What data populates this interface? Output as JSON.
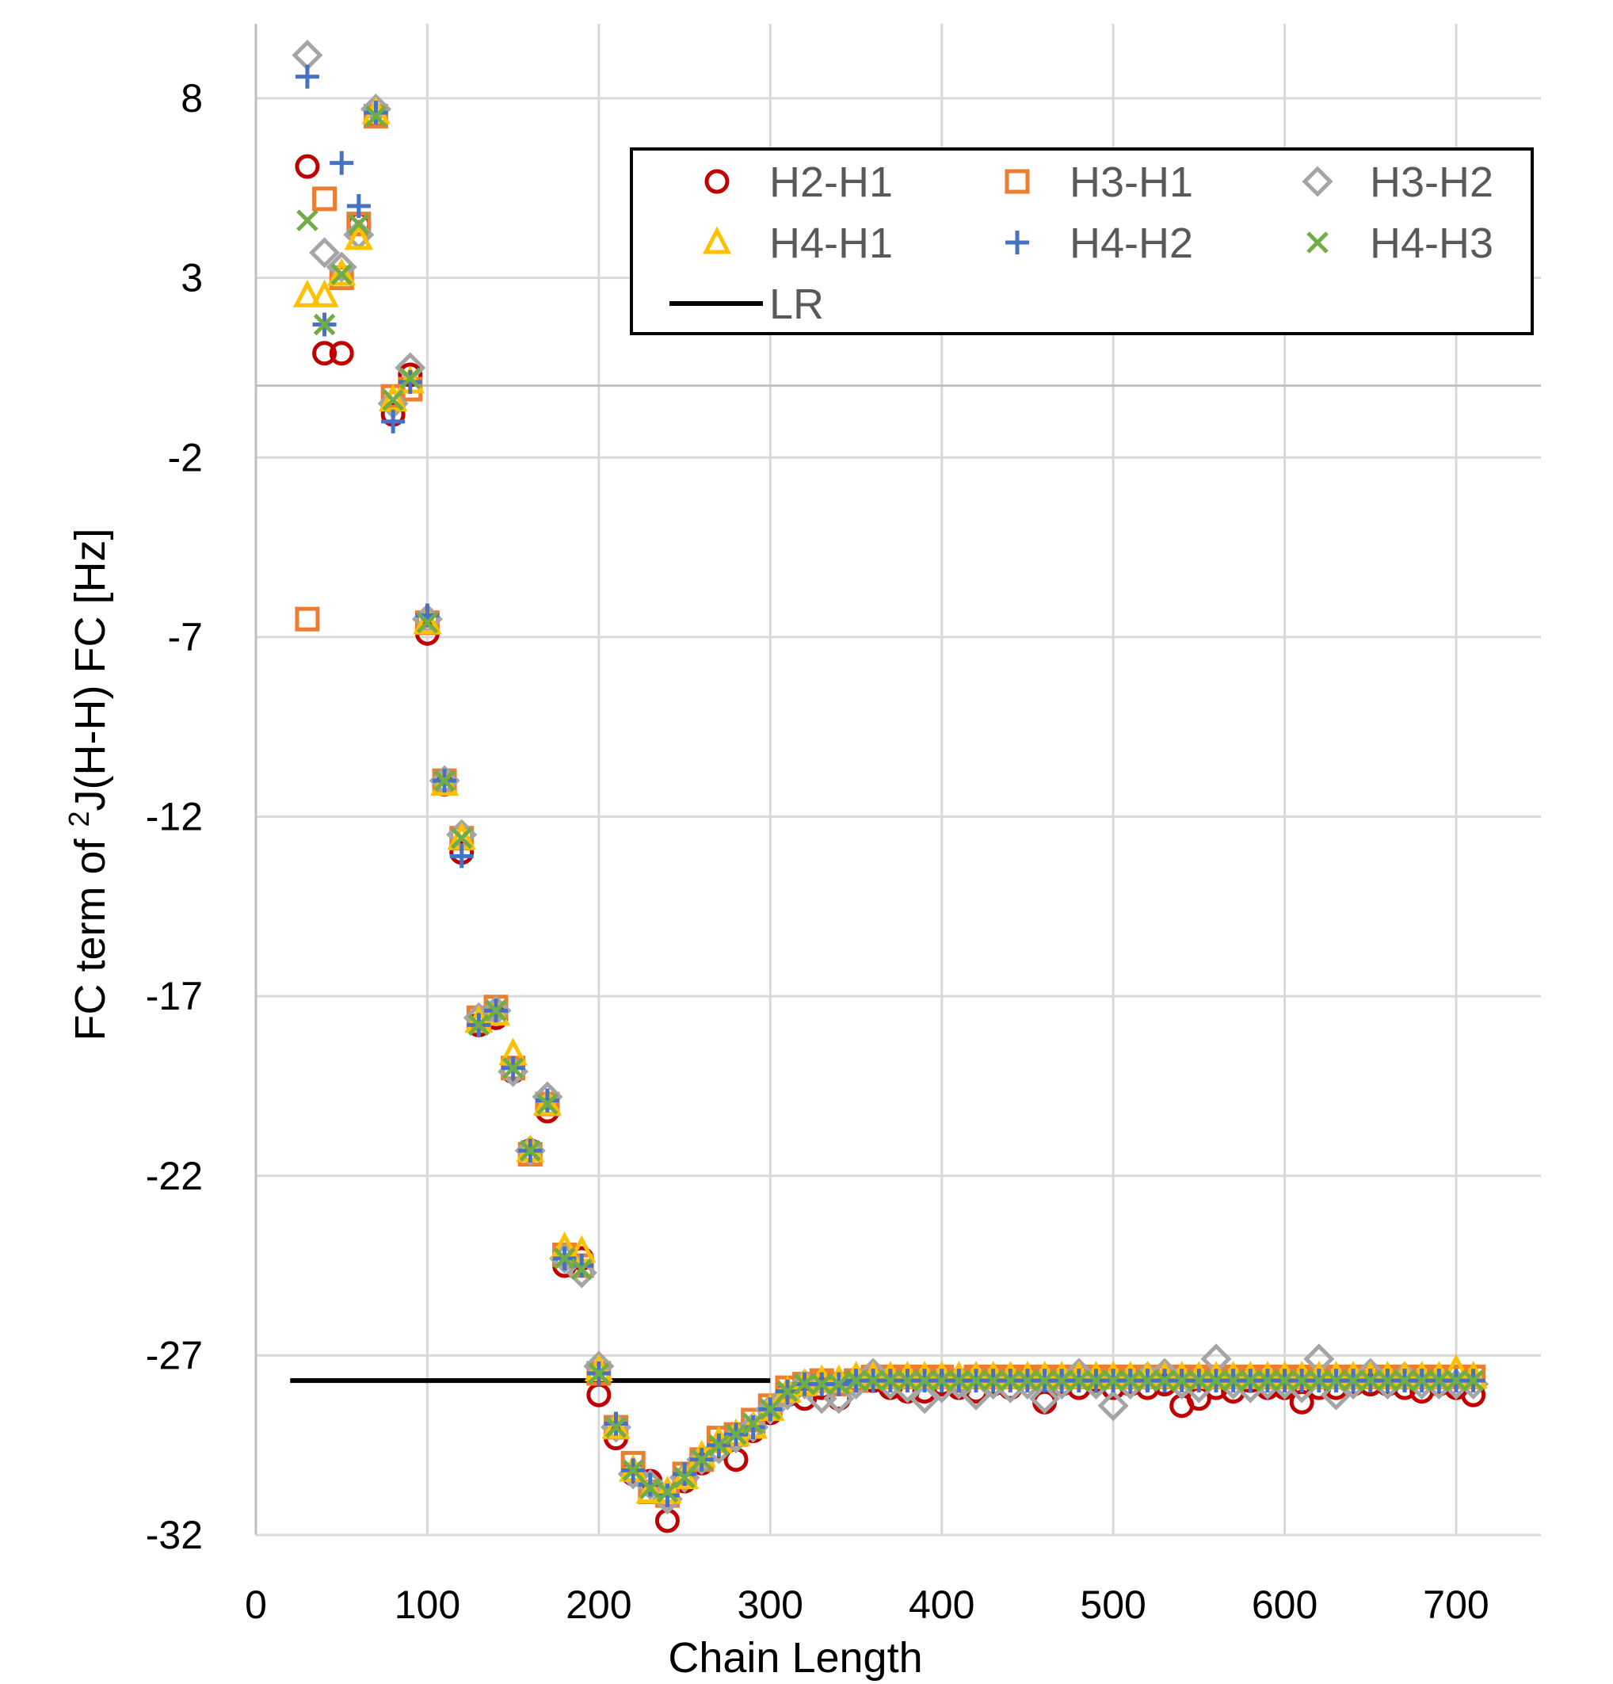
{
  "chart_data": {
    "type": "scatter",
    "title": "",
    "xlabel": "Chain Length",
    "ylabel_parts": {
      "prefix": "FC term of ",
      "superscript": "2",
      "suffix": "J(H-H) FC [Hz]"
    },
    "xlim": [
      0,
      750
    ],
    "ylim": [
      -32,
      10
    ],
    "xticks": [
      "0",
      "100",
      "200",
      "300",
      "400",
      "500",
      "600",
      "700"
    ],
    "yticks": [
      "8",
      "3",
      "-2",
      "-7",
      "-12",
      "-17",
      "-22",
      "-27",
      "-32"
    ],
    "grid": true,
    "legend_position": "top-right",
    "reference_line": {
      "name": "LR",
      "x": [
        20,
        300
      ],
      "y": -27.7,
      "color": "#000000"
    },
    "x": [
      30,
      40,
      50,
      60,
      70,
      80,
      90,
      100,
      110,
      120,
      130,
      140,
      150,
      160,
      170,
      180,
      190,
      200,
      210,
      220,
      230,
      240,
      250,
      260,
      270,
      280,
      290,
      300,
      310,
      320,
      330,
      340,
      350,
      360,
      370,
      380,
      390,
      400,
      410,
      420,
      430,
      440,
      450,
      460,
      470,
      480,
      490,
      500,
      510,
      520,
      530,
      540,
      550,
      560,
      570,
      580,
      590,
      600,
      610,
      620,
      630,
      640,
      650,
      660,
      670,
      680,
      690,
      700,
      710
    ],
    "series": [
      {
        "name": "H2-H1",
        "marker": "circle",
        "color": "#C00000",
        "values": [
          6.1,
          0.9,
          0.9,
          4.5,
          7.5,
          -0.8,
          0.3,
          -6.9,
          -11.1,
          -13.0,
          -17.8,
          -17.6,
          -19.1,
          -21.3,
          -20.2,
          -24.5,
          -24.3,
          -28.1,
          -29.3,
          -30.3,
          -30.5,
          -31.6,
          -30.5,
          -30.0,
          -29.6,
          -29.9,
          -29.1,
          -28.6,
          -28.1,
          -28.2,
          -27.9,
          -28.2,
          -27.7,
          -27.7,
          -27.9,
          -28.0,
          -28.0,
          -27.8,
          -27.9,
          -28.0,
          -27.8,
          -27.9,
          -27.6,
          -28.3,
          -27.8,
          -27.9,
          -27.7,
          -27.9,
          -27.8,
          -27.9,
          -27.8,
          -28.4,
          -28.2,
          -27.9,
          -28.0,
          -27.7,
          -27.9,
          -27.9,
          -28.3,
          -27.9,
          -27.9,
          -27.8,
          -27.8,
          -27.8,
          -27.9,
          -28.0,
          -27.8,
          -27.9,
          -28.1
        ]
      },
      {
        "name": "H3-H1",
        "marker": "square",
        "color": "#ED7D31",
        "values": [
          -6.5,
          5.2,
          3.0,
          4.5,
          7.5,
          -0.3,
          -0.1,
          -6.6,
          -11.0,
          -12.6,
          -17.6,
          -17.3,
          -19.0,
          -21.4,
          -20.0,
          -24.2,
          -24.5,
          -27.5,
          -29.0,
          -30.0,
          -30.8,
          -30.9,
          -30.3,
          -29.9,
          -29.3,
          -29.2,
          -28.8,
          -28.4,
          -27.9,
          -27.8,
          -27.7,
          -27.8,
          -27.7,
          -27.6,
          -27.6,
          -27.6,
          -27.6,
          -27.6,
          -27.7,
          -27.6,
          -27.6,
          -27.6,
          -27.6,
          -27.6,
          -27.6,
          -27.6,
          -27.6,
          -27.6,
          -27.6,
          -27.6,
          -27.6,
          -27.6,
          -27.6,
          -27.6,
          -27.6,
          -27.6,
          -27.6,
          -27.6,
          -27.6,
          -27.6,
          -27.6,
          -27.6,
          -27.6,
          -27.6,
          -27.6,
          -27.6,
          -27.6,
          -27.6,
          -27.6
        ]
      },
      {
        "name": "H3-H2",
        "marker": "diamond",
        "color": "#A5A5A5",
        "values": [
          9.2,
          3.7,
          3.3,
          4.2,
          7.7,
          -0.5,
          0.5,
          -6.5,
          -11.0,
          -12.5,
          -17.6,
          -17.4,
          -19.1,
          -21.3,
          -19.8,
          -24.3,
          -24.7,
          -27.3,
          -29.0,
          -30.3,
          -30.6,
          -31.0,
          -30.4,
          -29.9,
          -29.6,
          -29.3,
          -29.0,
          -28.5,
          -28.1,
          -27.8,
          -28.2,
          -28.2,
          -27.8,
          -27.5,
          -27.8,
          -27.9,
          -28.2,
          -27.9,
          -27.8,
          -28.1,
          -27.8,
          -27.9,
          -27.8,
          -28.2,
          -27.8,
          -27.5,
          -27.8,
          -28.4,
          -27.8,
          -27.6,
          -27.5,
          -27.8,
          -27.9,
          -27.1,
          -27.8,
          -27.9,
          -27.8,
          -27.8,
          -27.9,
          -27.1,
          -28.1,
          -27.8,
          -27.5,
          -27.8,
          -27.6,
          -27.8,
          -27.8,
          -27.8,
          -27.8
        ]
      },
      {
        "name": "H4-H1",
        "marker": "triangle",
        "color": "#FFC000",
        "values": [
          2.5,
          2.5,
          3.1,
          4.1,
          7.6,
          -0.4,
          0.1,
          -6.6,
          -11.1,
          -12.6,
          -17.7,
          -17.5,
          -18.6,
          -21.3,
          -20.0,
          -24.0,
          -24.1,
          -27.4,
          -29.0,
          -30.2,
          -30.8,
          -30.8,
          -30.4,
          -29.8,
          -29.4,
          -29.2,
          -29.0,
          -28.5,
          -28.0,
          -27.8,
          -27.7,
          -27.7,
          -27.6,
          -27.6,
          -27.6,
          -27.6,
          -27.6,
          -27.6,
          -27.6,
          -27.6,
          -27.6,
          -27.6,
          -27.6,
          -27.6,
          -27.6,
          -27.6,
          -27.6,
          -27.6,
          -27.6,
          -27.6,
          -27.6,
          -27.6,
          -27.6,
          -27.6,
          -27.6,
          -27.6,
          -27.6,
          -27.6,
          -27.6,
          -27.6,
          -27.6,
          -27.6,
          -27.6,
          -27.6,
          -27.6,
          -27.6,
          -27.6,
          -27.4,
          -27.6
        ]
      },
      {
        "name": "H4-H2",
        "marker": "plus",
        "color": "#4472C4",
        "values": [
          8.6,
          1.7,
          6.2,
          5.0,
          7.6,
          -1.0,
          0.1,
          -6.4,
          -11.0,
          -13.1,
          -17.8,
          -17.4,
          -19.0,
          -21.3,
          -19.9,
          -24.3,
          -24.5,
          -27.5,
          -28.9,
          -30.2,
          -30.6,
          -30.9,
          -30.3,
          -29.9,
          -29.5,
          -29.2,
          -29.0,
          -28.5,
          -28.0,
          -27.8,
          -27.8,
          -27.8,
          -27.7,
          -27.7,
          -27.7,
          -27.7,
          -27.7,
          -27.7,
          -27.7,
          -27.7,
          -27.7,
          -27.7,
          -27.7,
          -27.7,
          -27.7,
          -27.7,
          -27.7,
          -27.7,
          -27.7,
          -27.7,
          -27.7,
          -27.7,
          -27.7,
          -27.7,
          -27.7,
          -27.7,
          -27.7,
          -27.7,
          -27.7,
          -27.7,
          -27.7,
          -27.7,
          -27.7,
          -27.7,
          -27.7,
          -27.7,
          -27.7,
          -27.7,
          -27.7
        ]
      },
      {
        "name": "H4-H3",
        "marker": "cross",
        "color": "#70AD47",
        "values": [
          4.6,
          1.7,
          3.1,
          4.5,
          7.5,
          -0.4,
          0.2,
          -6.6,
          -11.0,
          -12.6,
          -17.8,
          -17.4,
          -19.0,
          -21.3,
          -20.0,
          -24.3,
          -24.6,
          -27.5,
          -29.0,
          -30.2,
          -30.7,
          -30.8,
          -30.4,
          -29.9,
          -29.5,
          -29.2,
          -28.9,
          -28.5,
          -28.0,
          -27.8,
          -27.8,
          -27.8,
          -27.7,
          -27.7,
          -27.7,
          -27.7,
          -27.7,
          -27.7,
          -27.7,
          -27.7,
          -27.7,
          -27.7,
          -27.7,
          -27.7,
          -27.7,
          -27.7,
          -27.7,
          -27.7,
          -27.7,
          -27.7,
          -27.7,
          -27.7,
          -27.7,
          -27.7,
          -27.7,
          -27.7,
          -27.7,
          -27.7,
          -27.7,
          -27.7,
          -27.7,
          -27.7,
          -27.7,
          -27.7,
          -27.7,
          -27.7,
          -27.7,
          -27.7,
          -27.7
        ]
      }
    ]
  }
}
